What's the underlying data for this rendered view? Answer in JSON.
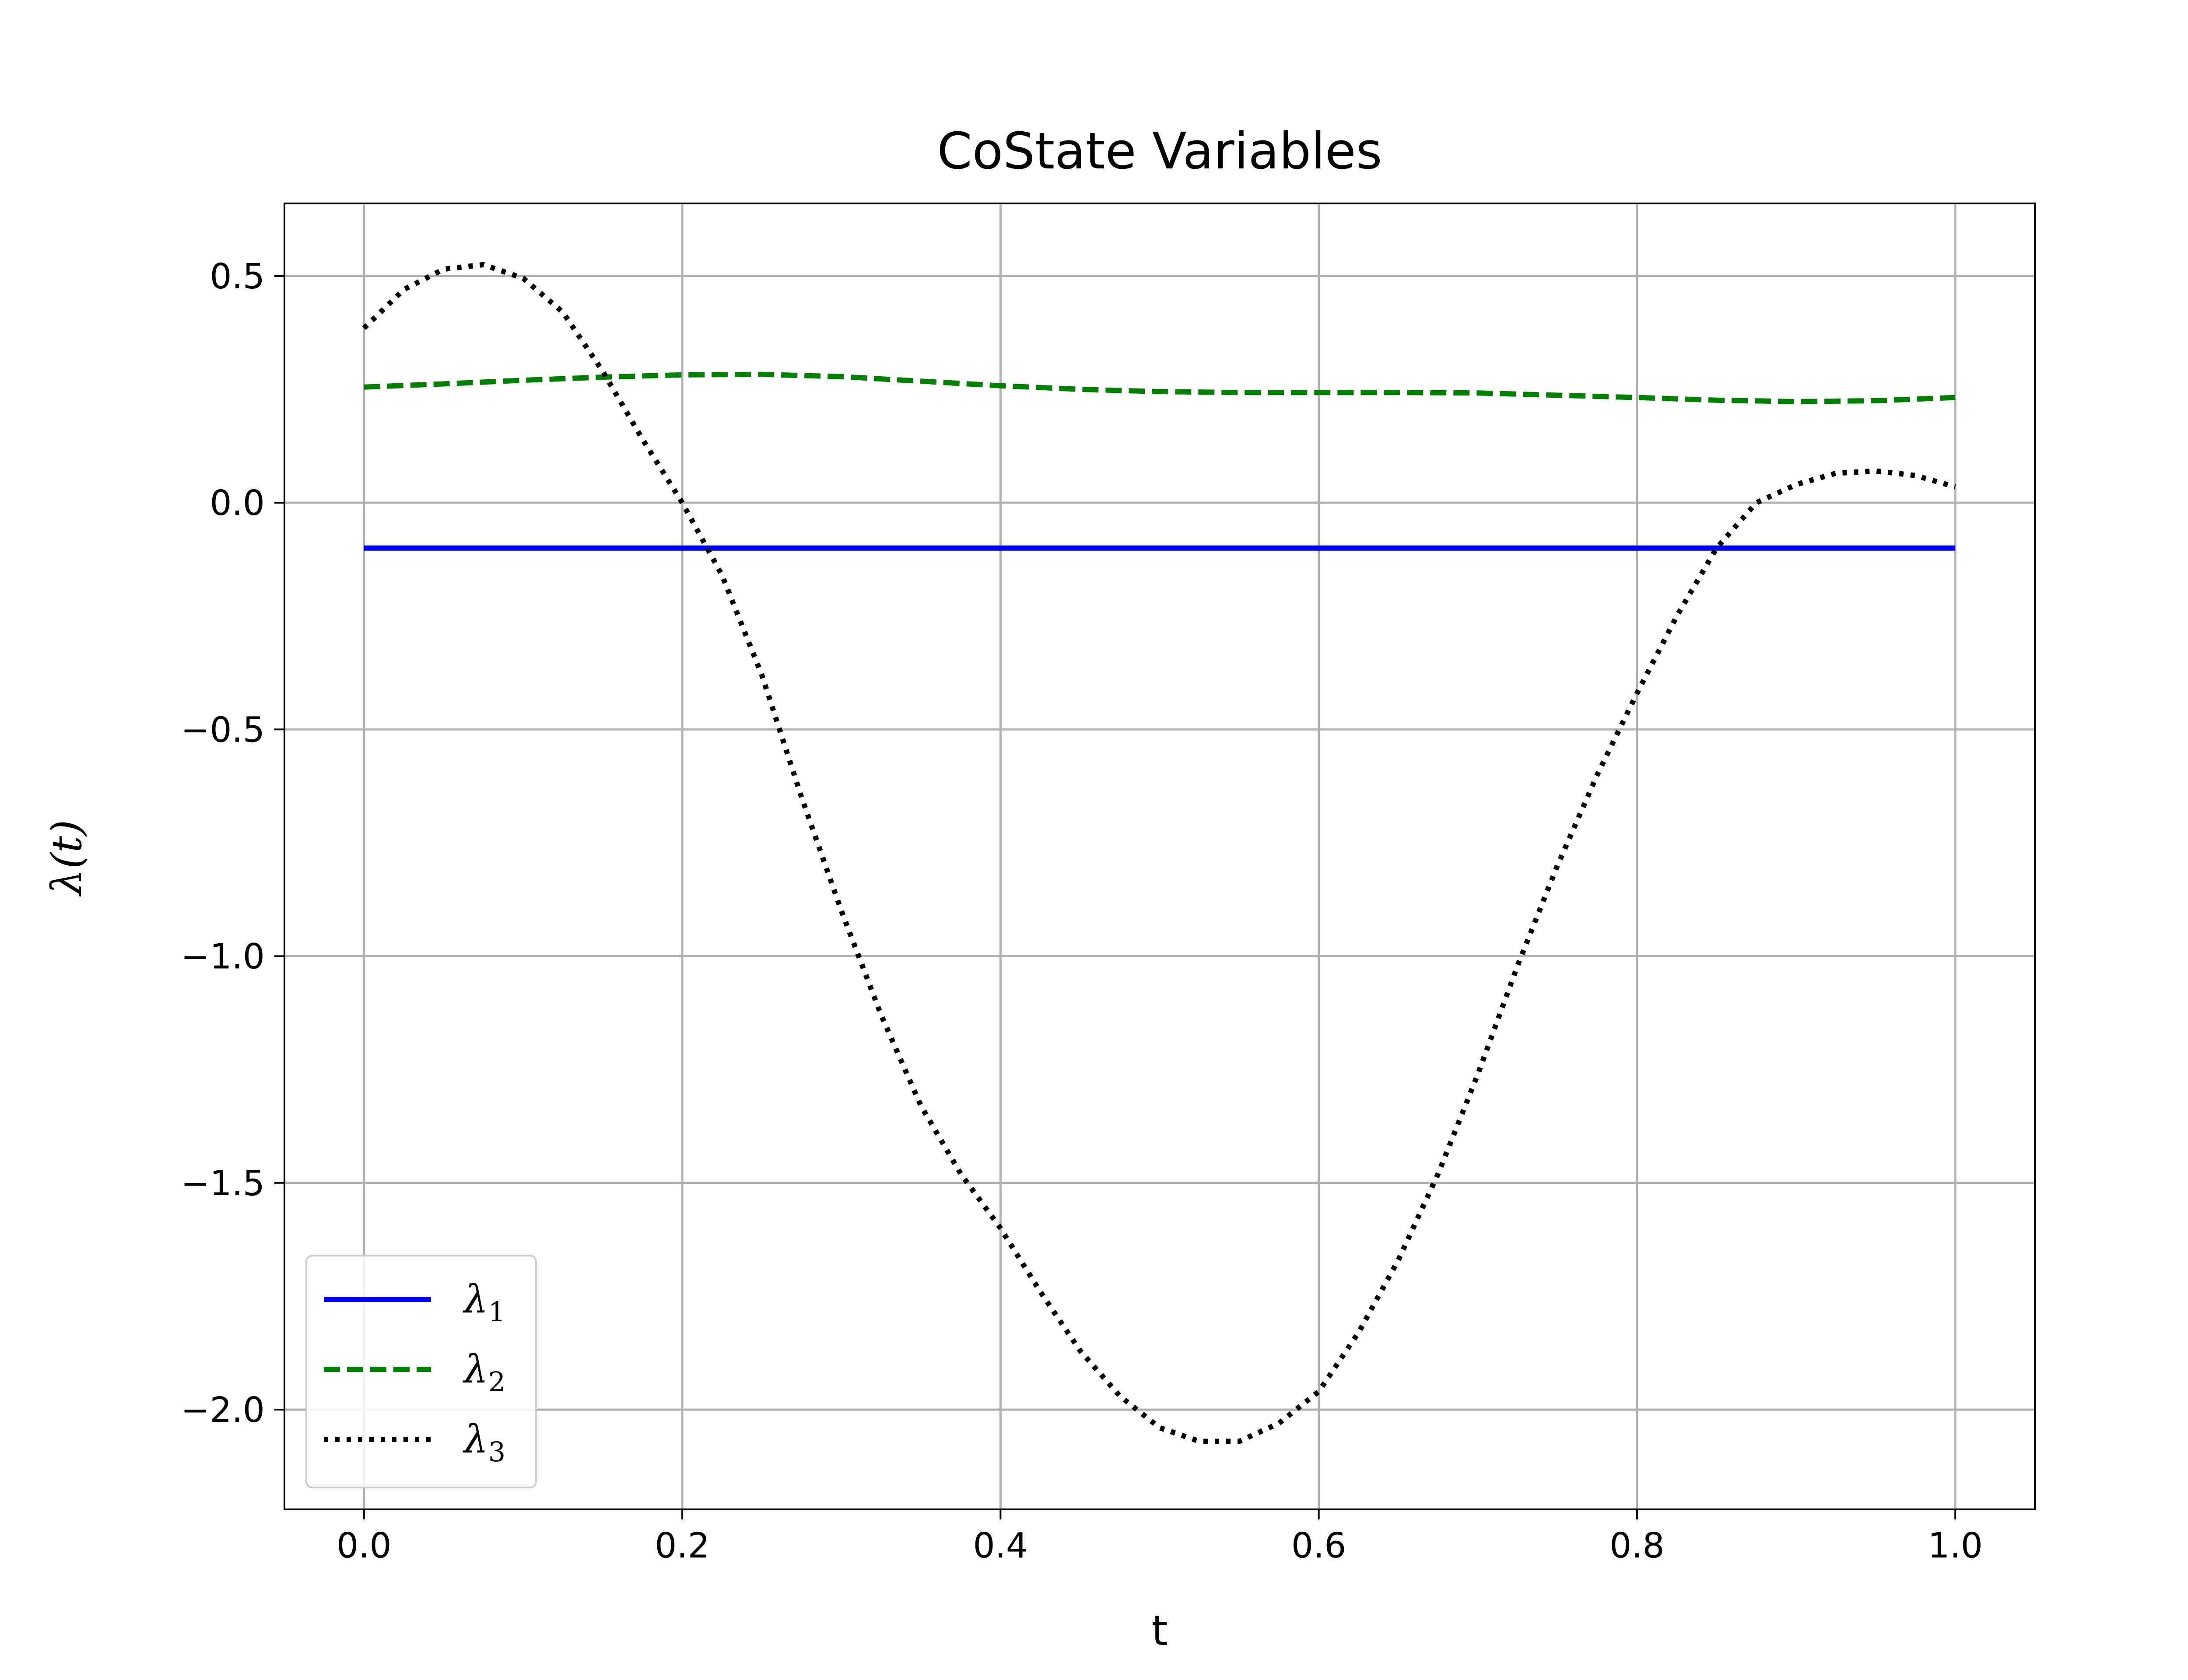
{
  "chart_data": {
    "type": "line",
    "title": "CoState Variables",
    "xlabel": "t",
    "ylabel": "λ(t)",
    "xlim": [
      -0.05,
      1.05
    ],
    "ylim": [
      -2.22,
      0.66
    ],
    "xticks": [
      0.0,
      0.2,
      0.4,
      0.6,
      0.8,
      1.0
    ],
    "xtick_labels": [
      "0.0",
      "0.2",
      "0.4",
      "0.6",
      "0.8",
      "1.0"
    ],
    "yticks": [
      0.5,
      0.0,
      -0.5,
      -1.0,
      -1.5,
      -2.0
    ],
    "ytick_labels": [
      "0.5",
      "0.0",
      "−0.5",
      "−1.0",
      "−1.5",
      "−2.0"
    ],
    "grid": true,
    "legend_position": "lower-left",
    "series": [
      {
        "name": "λ",
        "subscript": "1",
        "color": "#0000ff",
        "style": "solid",
        "x": [
          0.0,
          0.1,
          0.2,
          0.3,
          0.4,
          0.5,
          0.6,
          0.7,
          0.8,
          0.9,
          1.0
        ],
        "y": [
          -0.1,
          -0.1,
          -0.1,
          -0.1,
          -0.1,
          -0.1,
          -0.1,
          -0.1,
          -0.1,
          -0.1,
          -0.1
        ]
      },
      {
        "name": "λ",
        "subscript": "2",
        "color": "#008000",
        "style": "dashed",
        "x": [
          0.0,
          0.05,
          0.1,
          0.15,
          0.2,
          0.25,
          0.3,
          0.35,
          0.4,
          0.45,
          0.5,
          0.55,
          0.6,
          0.65,
          0.7,
          0.75,
          0.8,
          0.85,
          0.9,
          0.95,
          1.0
        ],
        "y": [
          0.255,
          0.262,
          0.27,
          0.277,
          0.282,
          0.283,
          0.278,
          0.268,
          0.258,
          0.25,
          0.245,
          0.243,
          0.243,
          0.243,
          0.242,
          0.237,
          0.232,
          0.226,
          0.223,
          0.225,
          0.232
        ]
      },
      {
        "name": "λ",
        "subscript": "3",
        "color": "#000000",
        "style": "dotted",
        "x": [
          0.0,
          0.025,
          0.05,
          0.075,
          0.1,
          0.125,
          0.15,
          0.175,
          0.2,
          0.225,
          0.25,
          0.275,
          0.3,
          0.325,
          0.35,
          0.375,
          0.4,
          0.425,
          0.45,
          0.475,
          0.5,
          0.525,
          0.55,
          0.575,
          0.6,
          0.625,
          0.65,
          0.675,
          0.7,
          0.725,
          0.75,
          0.775,
          0.8,
          0.825,
          0.85,
          0.875,
          0.9,
          0.925,
          0.95,
          0.975,
          1.0
        ],
        "y": [
          0.385,
          0.47,
          0.515,
          0.525,
          0.495,
          0.42,
          0.29,
          0.14,
          0.0,
          -0.16,
          -0.38,
          -0.65,
          -0.9,
          -1.13,
          -1.33,
          -1.48,
          -1.6,
          -1.74,
          -1.87,
          -1.97,
          -2.04,
          -2.07,
          -2.07,
          -2.03,
          -1.96,
          -1.83,
          -1.67,
          -1.48,
          -1.26,
          -1.02,
          -0.8,
          -0.6,
          -0.42,
          -0.25,
          -0.1,
          0.0,
          0.04,
          0.065,
          0.07,
          0.06,
          0.035
        ]
      }
    ]
  }
}
